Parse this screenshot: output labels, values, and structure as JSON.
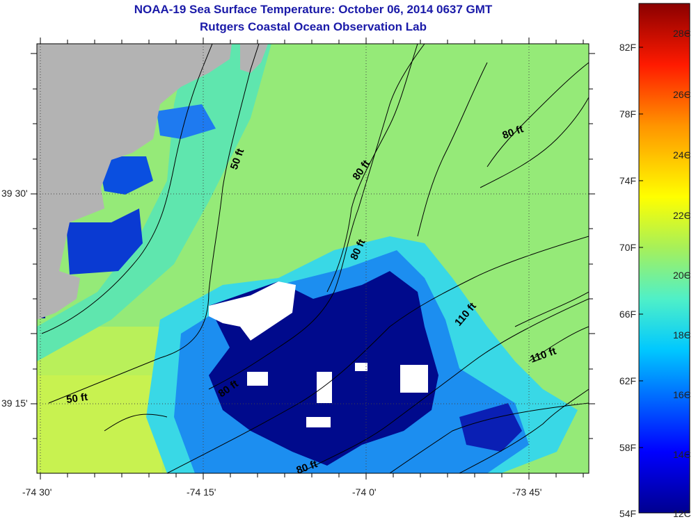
{
  "title": {
    "line1": "NOAA-19 Sea Surface Temperature:  October 06, 2014 0637 GMT",
    "line2": "Rutgers Coastal Ocean Observation Lab"
  },
  "map": {
    "x_ticks": [
      "-74 30'",
      "-74 15'",
      "-74 0'",
      "-73 45'"
    ],
    "y_ticks": [
      "39 30'",
      "39 15'"
    ],
    "contour_labels": [
      "50 ft",
      "80 ft",
      "80 ft",
      "80 ft",
      "110 ft",
      "110 ft",
      "50 ft",
      "80 ft",
      "80 ft"
    ],
    "colors": {
      "land": "#b3b3b3",
      "cloud": "#ffffff",
      "warm_offshore": "#8fea6a",
      "cold_upwelling": "#000a8c"
    }
  },
  "colorbar": {
    "fahrenheit_labels": [
      "82F",
      "78F",
      "74F",
      "70F",
      "66F",
      "62F",
      "58F",
      "54F"
    ],
    "celsius_labels": [
      "28C",
      "26C",
      "24C",
      "22C",
      "20C",
      "18C",
      "16C",
      "14C",
      "12C"
    ],
    "range_c": [
      12,
      29.5
    ]
  }
}
